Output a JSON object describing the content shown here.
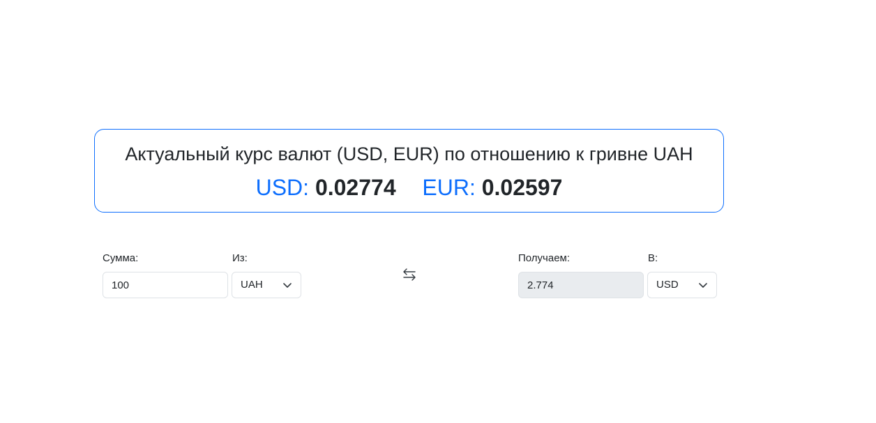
{
  "rates": {
    "title": "Актуальный курс валют (USD, EUR) по отношению к гривне UAH",
    "usd_label": "USD:",
    "usd_value": "0.02774",
    "eur_label": "EUR:",
    "eur_value": "0.02597",
    "accent_color": "#0d6efd"
  },
  "converter": {
    "amount_label": "Сумма:",
    "amount_value": "100",
    "from_label": "Из:",
    "from_currency": "UAH",
    "swap_icon": "swap-arrows-icon",
    "result_label": "Получаем:",
    "result_value": "2.774",
    "to_label": "В:",
    "to_currency": "USD"
  }
}
